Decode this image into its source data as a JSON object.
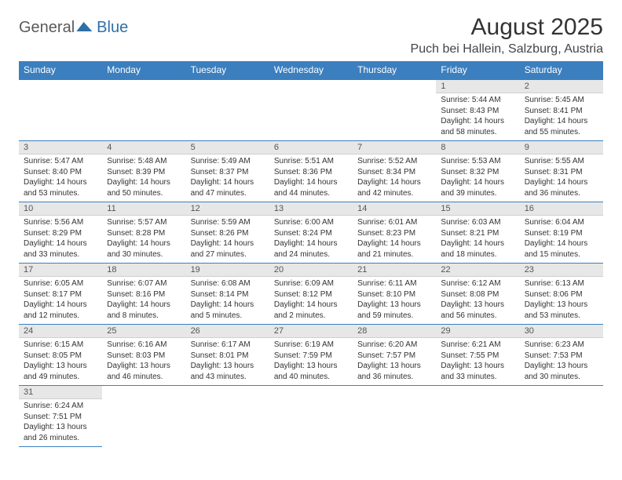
{
  "brand": {
    "part1": "General",
    "part2": "Blue"
  },
  "title": "August 2025",
  "location": "Puch bei Hallein, Salzburg, Austria",
  "colors": {
    "header_bg": "#3b7fbf",
    "header_text": "#ffffff",
    "daynum_bg": "#e7e7e7",
    "row_border": "#3b7fbf",
    "logo_blue": "#2f6fa8",
    "logo_gray": "#5a5a5a"
  },
  "weekdays": [
    "Sunday",
    "Monday",
    "Tuesday",
    "Wednesday",
    "Thursday",
    "Friday",
    "Saturday"
  ],
  "grid": {
    "leading_blanks": 5,
    "days": [
      {
        "n": 1,
        "sunrise": "5:44 AM",
        "sunset": "8:43 PM",
        "dl_h": 14,
        "dl_m": 58
      },
      {
        "n": 2,
        "sunrise": "5:45 AM",
        "sunset": "8:41 PM",
        "dl_h": 14,
        "dl_m": 55
      },
      {
        "n": 3,
        "sunrise": "5:47 AM",
        "sunset": "8:40 PM",
        "dl_h": 14,
        "dl_m": 53
      },
      {
        "n": 4,
        "sunrise": "5:48 AM",
        "sunset": "8:39 PM",
        "dl_h": 14,
        "dl_m": 50
      },
      {
        "n": 5,
        "sunrise": "5:49 AM",
        "sunset": "8:37 PM",
        "dl_h": 14,
        "dl_m": 47
      },
      {
        "n": 6,
        "sunrise": "5:51 AM",
        "sunset": "8:36 PM",
        "dl_h": 14,
        "dl_m": 44
      },
      {
        "n": 7,
        "sunrise": "5:52 AM",
        "sunset": "8:34 PM",
        "dl_h": 14,
        "dl_m": 42
      },
      {
        "n": 8,
        "sunrise": "5:53 AM",
        "sunset": "8:32 PM",
        "dl_h": 14,
        "dl_m": 39
      },
      {
        "n": 9,
        "sunrise": "5:55 AM",
        "sunset": "8:31 PM",
        "dl_h": 14,
        "dl_m": 36
      },
      {
        "n": 10,
        "sunrise": "5:56 AM",
        "sunset": "8:29 PM",
        "dl_h": 14,
        "dl_m": 33
      },
      {
        "n": 11,
        "sunrise": "5:57 AM",
        "sunset": "8:28 PM",
        "dl_h": 14,
        "dl_m": 30
      },
      {
        "n": 12,
        "sunrise": "5:59 AM",
        "sunset": "8:26 PM",
        "dl_h": 14,
        "dl_m": 27
      },
      {
        "n": 13,
        "sunrise": "6:00 AM",
        "sunset": "8:24 PM",
        "dl_h": 14,
        "dl_m": 24
      },
      {
        "n": 14,
        "sunrise": "6:01 AM",
        "sunset": "8:23 PM",
        "dl_h": 14,
        "dl_m": 21
      },
      {
        "n": 15,
        "sunrise": "6:03 AM",
        "sunset": "8:21 PM",
        "dl_h": 14,
        "dl_m": 18
      },
      {
        "n": 16,
        "sunrise": "6:04 AM",
        "sunset": "8:19 PM",
        "dl_h": 14,
        "dl_m": 15
      },
      {
        "n": 17,
        "sunrise": "6:05 AM",
        "sunset": "8:17 PM",
        "dl_h": 14,
        "dl_m": 12
      },
      {
        "n": 18,
        "sunrise": "6:07 AM",
        "sunset": "8:16 PM",
        "dl_h": 14,
        "dl_m": 8
      },
      {
        "n": 19,
        "sunrise": "6:08 AM",
        "sunset": "8:14 PM",
        "dl_h": 14,
        "dl_m": 5
      },
      {
        "n": 20,
        "sunrise": "6:09 AM",
        "sunset": "8:12 PM",
        "dl_h": 14,
        "dl_m": 2
      },
      {
        "n": 21,
        "sunrise": "6:11 AM",
        "sunset": "8:10 PM",
        "dl_h": 13,
        "dl_m": 59
      },
      {
        "n": 22,
        "sunrise": "6:12 AM",
        "sunset": "8:08 PM",
        "dl_h": 13,
        "dl_m": 56
      },
      {
        "n": 23,
        "sunrise": "6:13 AM",
        "sunset": "8:06 PM",
        "dl_h": 13,
        "dl_m": 53
      },
      {
        "n": 24,
        "sunrise": "6:15 AM",
        "sunset": "8:05 PM",
        "dl_h": 13,
        "dl_m": 49
      },
      {
        "n": 25,
        "sunrise": "6:16 AM",
        "sunset": "8:03 PM",
        "dl_h": 13,
        "dl_m": 46
      },
      {
        "n": 26,
        "sunrise": "6:17 AM",
        "sunset": "8:01 PM",
        "dl_h": 13,
        "dl_m": 43
      },
      {
        "n": 27,
        "sunrise": "6:19 AM",
        "sunset": "7:59 PM",
        "dl_h": 13,
        "dl_m": 40
      },
      {
        "n": 28,
        "sunrise": "6:20 AM",
        "sunset": "7:57 PM",
        "dl_h": 13,
        "dl_m": 36
      },
      {
        "n": 29,
        "sunrise": "6:21 AM",
        "sunset": "7:55 PM",
        "dl_h": 13,
        "dl_m": 33
      },
      {
        "n": 30,
        "sunrise": "6:23 AM",
        "sunset": "7:53 PM",
        "dl_h": 13,
        "dl_m": 30
      },
      {
        "n": 31,
        "sunrise": "6:24 AM",
        "sunset": "7:51 PM",
        "dl_h": 13,
        "dl_m": 26
      }
    ]
  },
  "labels": {
    "sunrise": "Sunrise:",
    "sunset": "Sunset:",
    "daylight": "Daylight:",
    "hours_word": "hours",
    "and_word": "and",
    "minutes_word": "minutes."
  }
}
